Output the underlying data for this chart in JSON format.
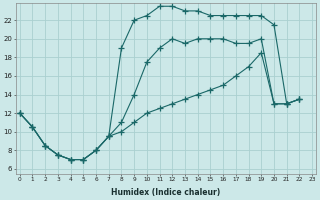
{
  "xlabel": "Humidex (Indice chaleur)",
  "bg_color": "#cce8e8",
  "grid_color": "#aad0d0",
  "line_color": "#1a6868",
  "line1_x": [
    0,
    1,
    2,
    3,
    4,
    5,
    6,
    7,
    8,
    9,
    10,
    11,
    12,
    13,
    14,
    15,
    16,
    17,
    18,
    19,
    20,
    21,
    22
  ],
  "line1_y": [
    12,
    10.5,
    8.5,
    7.5,
    7.0,
    7.0,
    8.0,
    9.5,
    19.0,
    22.0,
    22.5,
    23.5,
    23.5,
    23.0,
    23.0,
    22.5,
    22.5,
    22.5,
    22.5,
    22.5,
    21.5,
    13.0,
    13.5
  ],
  "line2_x": [
    0,
    1,
    2,
    3,
    4,
    5,
    6,
    7,
    8,
    9,
    10,
    11,
    12,
    13,
    14,
    15,
    16,
    17,
    18,
    19,
    20,
    21,
    22
  ],
  "line2_y": [
    12,
    10.5,
    8.5,
    7.5,
    7.0,
    7.0,
    8.0,
    9.5,
    11.0,
    14.0,
    17.5,
    19.0,
    20.0,
    19.5,
    20.0,
    20.0,
    20.0,
    19.5,
    19.5,
    20.0,
    13.0,
    13.0,
    13.5
  ],
  "line3_x": [
    0,
    1,
    2,
    3,
    4,
    5,
    6,
    7,
    8,
    9,
    10,
    11,
    12,
    13,
    14,
    15,
    16,
    17,
    18,
    19,
    20,
    21,
    22
  ],
  "line3_y": [
    12,
    10.5,
    8.5,
    7.5,
    7.0,
    7.0,
    8.0,
    9.5,
    10.0,
    11.0,
    12.0,
    12.5,
    13.0,
    13.5,
    14.0,
    14.5,
    15.0,
    16.0,
    17.0,
    18.5,
    13.0,
    13.0,
    13.5
  ],
  "xlim": [
    -0.3,
    23.3
  ],
  "ylim": [
    5.5,
    23.8
  ],
  "xticks": [
    0,
    1,
    2,
    3,
    4,
    5,
    6,
    7,
    8,
    9,
    10,
    11,
    12,
    13,
    14,
    15,
    16,
    17,
    18,
    19,
    20,
    21,
    22,
    23
  ],
  "yticks": [
    6,
    8,
    10,
    12,
    14,
    16,
    18,
    20,
    22
  ]
}
